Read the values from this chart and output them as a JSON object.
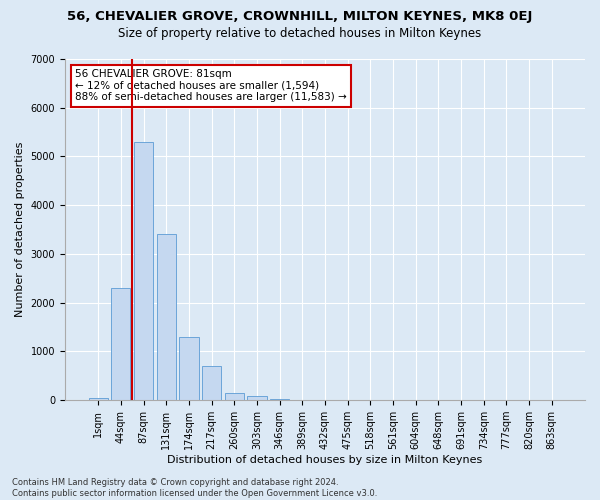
{
  "title1": "56, CHEVALIER GROVE, CROWNHILL, MILTON KEYNES, MK8 0EJ",
  "title2": "Size of property relative to detached houses in Milton Keynes",
  "xlabel": "Distribution of detached houses by size in Milton Keynes",
  "ylabel": "Number of detached properties",
  "footnote": "Contains HM Land Registry data © Crown copyright and database right 2024.\nContains public sector information licensed under the Open Government Licence v3.0.",
  "annotation_title": "56 CHEVALIER GROVE: 81sqm",
  "annotation_line1": "← 12% of detached houses are smaller (1,594)",
  "annotation_line2": "88% of semi-detached houses are larger (11,583) →",
  "bar_labels": [
    "1sqm",
    "44sqm",
    "87sqm",
    "131sqm",
    "174sqm",
    "217sqm",
    "260sqm",
    "303sqm",
    "346sqm",
    "389sqm",
    "432sqm",
    "475sqm",
    "518sqm",
    "561sqm",
    "604sqm",
    "648sqm",
    "691sqm",
    "734sqm",
    "777sqm",
    "820sqm",
    "863sqm"
  ],
  "bar_values": [
    50,
    2300,
    5300,
    3400,
    1300,
    700,
    150,
    80,
    30,
    5,
    2,
    1,
    0,
    0,
    0,
    0,
    0,
    0,
    0,
    0,
    0
  ],
  "bar_color": "#c5d8f0",
  "bar_edge_color": "#5b9bd5",
  "annotation_box_edge_color": "#cc0000",
  "red_line_color": "#cc0000",
  "background_color": "#dce9f5",
  "plot_bg_color": "#dce9f5",
  "ylim": [
    0,
    7000
  ],
  "yticks": [
    0,
    1000,
    2000,
    3000,
    4000,
    5000,
    6000,
    7000
  ],
  "grid_color": "#ffffff",
  "title1_fontsize": 9.5,
  "title2_fontsize": 8.5,
  "xlabel_fontsize": 8,
  "ylabel_fontsize": 8,
  "tick_fontsize": 7,
  "annotation_fontsize": 7.5,
  "footnote_fontsize": 6
}
